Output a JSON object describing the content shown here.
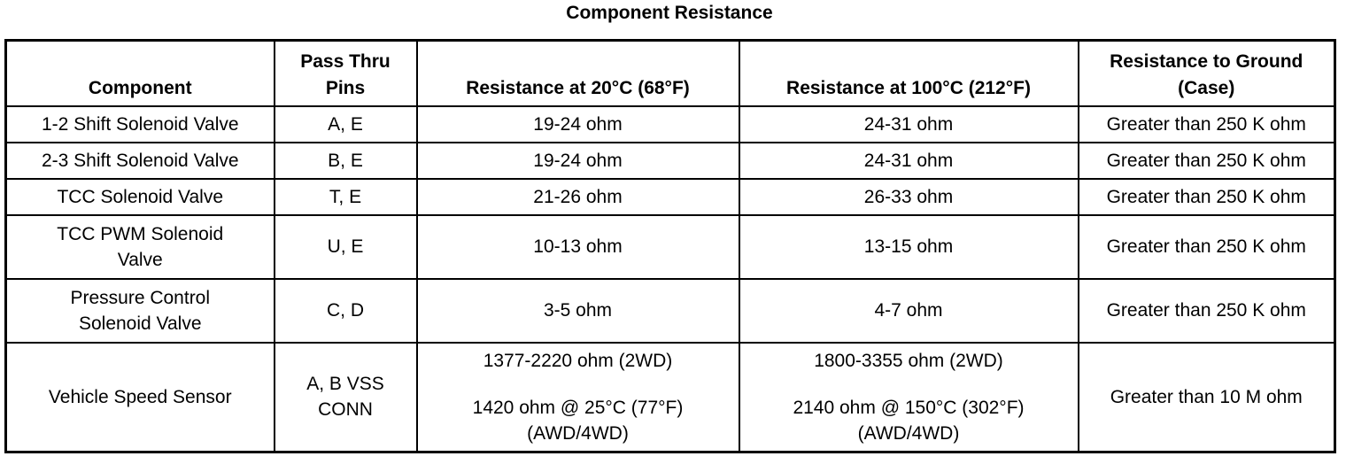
{
  "title": "Component Resistance",
  "headers": {
    "component": "Component",
    "pins_line1": "Pass Thru",
    "pins_line2": "Pins",
    "res20": "Resistance at 20°C (68°F)",
    "res100": "Resistance at 100°C (212°F)",
    "ground_line1": "Resistance to Ground",
    "ground_line2": "(Case)"
  },
  "rows": [
    {
      "component": "1-2 Shift Solenoid Valve",
      "pins": "A, E",
      "res20": "19-24 ohm",
      "res100": "24-31 ohm",
      "ground": "Greater than 250 K ohm"
    },
    {
      "component": "2-3 Shift Solenoid Valve",
      "pins": "B, E",
      "res20": "19-24 ohm",
      "res100": "24-31 ohm",
      "ground": "Greater than 250 K ohm"
    },
    {
      "component": "TCC Solenoid Valve",
      "pins": "T, E",
      "res20": "21-26 ohm",
      "res100": "26-33 ohm",
      "ground": "Greater than 250 K ohm"
    },
    {
      "component_line1": "TCC PWM Solenoid",
      "component_line2": "Valve",
      "pins": "U, E",
      "res20": "10-13 ohm",
      "res100": "13-15 ohm",
      "ground": "Greater than 250 K ohm"
    },
    {
      "component_line1": "Pressure Control",
      "component_line2": "Solenoid Valve",
      "pins": "C, D",
      "res20": "3-5 ohm",
      "res100": "4-7 ohm",
      "ground": "Greater than 250 K ohm"
    },
    {
      "component": "Vehicle Speed Sensor",
      "pins_line1": "A, B VSS",
      "pins_line2": "CONN",
      "res20_a": "1377-2220 ohm (2WD)",
      "res20_b": "1420 ohm @ 25°C (77°F)",
      "res20_c": "(AWD/4WD)",
      "res100_a": "1800-3355 ohm (2WD)",
      "res100_b": "2140 ohm @ 150°C (302°F)",
      "res100_c": "(AWD/4WD)",
      "ground": "Greater than 10 M ohm"
    }
  ]
}
